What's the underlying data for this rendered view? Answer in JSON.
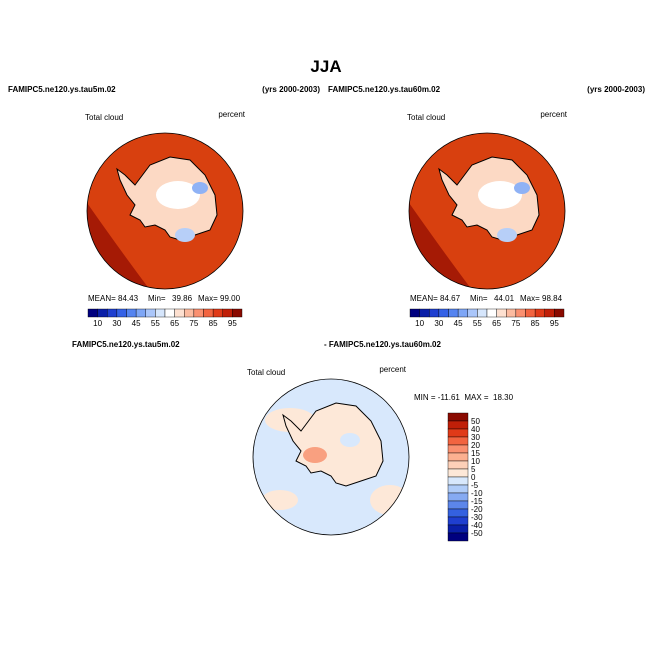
{
  "title": "JJA",
  "panels": [
    {
      "case": "FAMIPC5.ne120.ys.tau5m.02",
      "years": "(yrs 2000-2003)",
      "variable": "Total cloud",
      "units": "percent",
      "stats": {
        "mean_label": "MEAN=",
        "mean": "84.43",
        "min_label": "Min=",
        "min": "39.86",
        "max_label": "Max=",
        "max": "99.00"
      }
    },
    {
      "case": "FAMIPC5.ne120.ys.tau60m.02",
      "years": "(yrs 2000-2003)",
      "variable": "Total cloud",
      "units": "percent",
      "stats": {
        "mean_label": "MEAN=",
        "mean": "84.67",
        "min_label": "Min=",
        "min": "44.01",
        "max_label": "Max=",
        "max": "98.84"
      }
    }
  ],
  "colorbar": {
    "labels": [
      "10",
      "30",
      "45",
      "55",
      "65",
      "75",
      "85",
      "95"
    ],
    "colors": [
      "#00007f",
      "#0a1fa8",
      "#1f3fd0",
      "#3461e6",
      "#5584f0",
      "#7ea6f6",
      "#aac6fa",
      "#d6e6fc",
      "#ffffff",
      "#fde0d0",
      "#fcbba0",
      "#fa9070",
      "#f26440",
      "#e03a18",
      "#c01f08",
      "#8a0a00"
    ]
  },
  "difference": {
    "case_a": "FAMIPC5.ne120.ys.tau5m.02",
    "case_b": "- FAMIPC5.ne120.ys.tau60m.02",
    "variable": "Total cloud",
    "units": "percent",
    "stats": "MIN = -11.61  MAX =  18.30",
    "colorbar": {
      "labels": [
        "50",
        "40",
        "30",
        "20",
        "15",
        "10",
        "5",
        "0",
        "-5",
        "-10",
        "-15",
        "-20",
        "-30",
        "-40",
        "-50"
      ],
      "colors": [
        "#8a0a00",
        "#c01f08",
        "#e03a18",
        "#f26440",
        "#fa9070",
        "#fcb090",
        "#fdd0b8",
        "#fde8d8",
        "#d8e8fc",
        "#b0ccf8",
        "#86aaf2",
        "#5c86ea",
        "#3461e0",
        "#1f3fd0",
        "#0a1fa8",
        "#00007f"
      ]
    }
  }
}
